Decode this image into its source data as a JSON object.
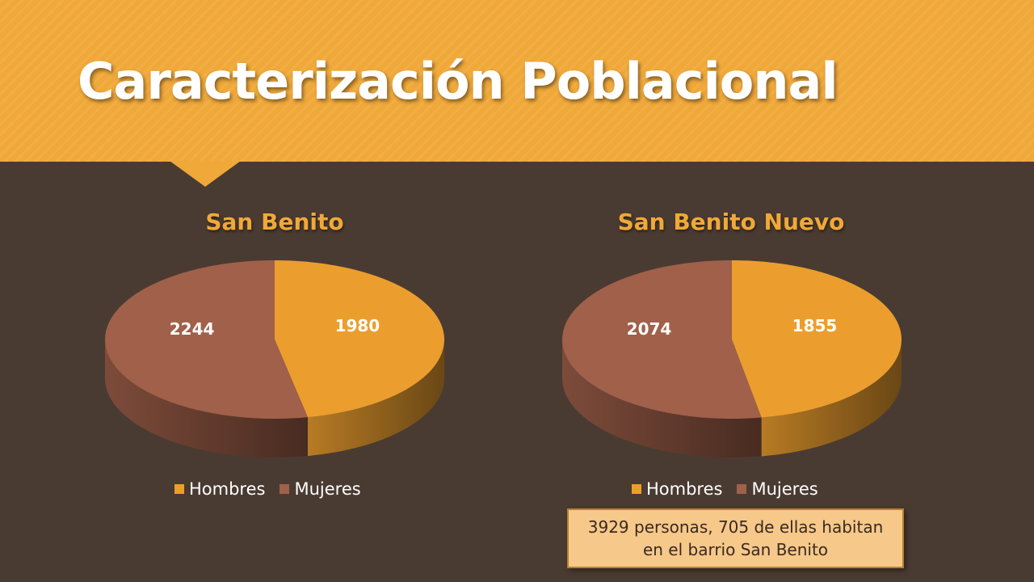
{
  "slide": {
    "title": "Caracterización Poblacional",
    "note": "3929 personas, 705 de ellas habitan en el barrio San Benito"
  },
  "colors": {
    "hombres": "#eb9e2e",
    "mujeres": "#a0604a",
    "header": "#f0a838",
    "background": "#4a3b32"
  },
  "chart_data": [
    {
      "type": "pie",
      "title": "San Benito",
      "categories": [
        "Hombres",
        "Mujeres"
      ],
      "values": [
        1980,
        2244
      ],
      "legend": "bottom"
    },
    {
      "type": "pie",
      "title": "San Benito Nuevo",
      "categories": [
        "Hombres",
        "Mujeres"
      ],
      "values": [
        1855,
        2074
      ],
      "legend": "bottom"
    }
  ]
}
